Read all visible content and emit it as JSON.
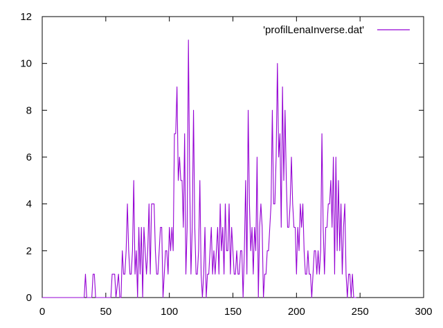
{
  "chart_data": {
    "type": "line",
    "title": "",
    "xlabel": "",
    "ylabel": "",
    "xlim": [
      0,
      300
    ],
    "ylim": [
      0,
      12
    ],
    "x_ticks": [
      0,
      50,
      100,
      150,
      200,
      250,
      300
    ],
    "y_ticks": [
      0,
      2,
      4,
      6,
      8,
      10,
      12
    ],
    "grid": false,
    "legend_position": "top-right",
    "series": [
      {
        "name": "'profilLenaInverse.dat'",
        "color": "#9400d3",
        "points": [
          [
            0,
            0
          ],
          [
            33,
            0
          ],
          [
            34,
            1
          ],
          [
            35,
            0
          ],
          [
            39,
            0
          ],
          [
            40,
            1
          ],
          [
            41,
            1
          ],
          [
            42,
            0
          ],
          [
            50,
            0
          ],
          [
            54,
            0
          ],
          [
            55,
            1
          ],
          [
            57,
            1
          ],
          [
            58,
            0
          ],
          [
            60,
            1
          ],
          [
            61,
            0
          ],
          [
            62,
            0
          ],
          [
            63,
            2
          ],
          [
            64,
            1
          ],
          [
            65,
            1
          ],
          [
            66,
            2
          ],
          [
            67,
            4
          ],
          [
            68,
            2
          ],
          [
            69,
            1
          ],
          [
            70,
            1
          ],
          [
            71,
            2
          ],
          [
            72,
            5
          ],
          [
            73,
            1
          ],
          [
            74,
            2
          ],
          [
            75,
            0
          ],
          [
            76,
            3
          ],
          [
            77,
            1
          ],
          [
            78,
            3
          ],
          [
            79,
            0
          ],
          [
            80,
            3
          ],
          [
            81,
            2
          ],
          [
            82,
            1
          ],
          [
            83,
            2
          ],
          [
            84,
            4
          ],
          [
            85,
            1
          ],
          [
            86,
            4
          ],
          [
            87,
            4
          ],
          [
            88,
            4
          ],
          [
            89,
            2
          ],
          [
            90,
            1
          ],
          [
            91,
            1
          ],
          [
            92,
            2
          ],
          [
            93,
            3
          ],
          [
            94,
            3
          ],
          [
            95,
            0
          ],
          [
            96,
            1
          ],
          [
            97,
            2
          ],
          [
            98,
            2
          ],
          [
            99,
            1
          ],
          [
            100,
            3
          ],
          [
            101,
            2
          ],
          [
            102,
            3
          ],
          [
            103,
            2
          ],
          [
            104,
            7
          ],
          [
            105,
            7
          ],
          [
            106,
            9
          ],
          [
            107,
            5
          ],
          [
            108,
            6
          ],
          [
            109,
            5
          ],
          [
            110,
            5
          ],
          [
            111,
            3
          ],
          [
            112,
            7
          ],
          [
            113,
            1
          ],
          [
            114,
            3
          ],
          [
            115,
            11
          ],
          [
            116,
            5
          ],
          [
            117,
            1
          ],
          [
            118,
            3
          ],
          [
            119,
            8
          ],
          [
            120,
            3
          ],
          [
            121,
            1
          ],
          [
            122,
            1
          ],
          [
            123,
            2
          ],
          [
            124,
            5
          ],
          [
            125,
            1
          ],
          [
            126,
            0
          ],
          [
            127,
            1
          ],
          [
            128,
            3
          ],
          [
            129,
            0
          ],
          [
            130,
            1
          ],
          [
            131,
            1
          ],
          [
            132,
            2
          ],
          [
            133,
            3
          ],
          [
            134,
            1
          ],
          [
            135,
            2
          ],
          [
            136,
            1
          ],
          [
            137,
            2
          ],
          [
            138,
            3
          ],
          [
            139,
            1
          ],
          [
            140,
            4
          ],
          [
            141,
            2
          ],
          [
            142,
            3
          ],
          [
            143,
            1
          ],
          [
            144,
            4
          ],
          [
            145,
            2
          ],
          [
            146,
            2
          ],
          [
            147,
            4
          ],
          [
            148,
            1
          ],
          [
            149,
            3
          ],
          [
            150,
            2
          ],
          [
            151,
            1
          ],
          [
            152,
            1
          ],
          [
            153,
            2
          ],
          [
            154,
            1
          ],
          [
            155,
            1
          ],
          [
            156,
            2
          ],
          [
            157,
            2
          ],
          [
            158,
            0
          ],
          [
            159,
            2
          ],
          [
            160,
            5
          ],
          [
            161,
            1
          ],
          [
            162,
            8
          ],
          [
            163,
            4
          ],
          [
            164,
            2
          ],
          [
            165,
            3
          ],
          [
            166,
            1
          ],
          [
            167,
            3
          ],
          [
            168,
            2
          ],
          [
            169,
            6
          ],
          [
            170,
            0
          ],
          [
            171,
            3
          ],
          [
            172,
            4
          ],
          [
            173,
            3
          ],
          [
            174,
            0
          ],
          [
            175,
            1
          ],
          [
            176,
            1
          ],
          [
            177,
            2
          ],
          [
            178,
            2
          ],
          [
            179,
            3
          ],
          [
            180,
            4
          ],
          [
            181,
            8
          ],
          [
            182,
            4
          ],
          [
            183,
            4
          ],
          [
            184,
            6
          ],
          [
            185,
            10
          ],
          [
            186,
            6
          ],
          [
            187,
            7
          ],
          [
            188,
            3
          ],
          [
            189,
            9
          ],
          [
            190,
            5
          ],
          [
            191,
            8
          ],
          [
            192,
            5
          ],
          [
            193,
            3
          ],
          [
            194,
            3
          ],
          [
            195,
            4
          ],
          [
            196,
            6
          ],
          [
            197,
            4
          ],
          [
            198,
            3
          ],
          [
            199,
            3
          ],
          [
            200,
            1
          ],
          [
            201,
            3
          ],
          [
            202,
            2
          ],
          [
            203,
            4
          ],
          [
            204,
            3
          ],
          [
            205,
            4
          ],
          [
            206,
            2
          ],
          [
            207,
            1
          ],
          [
            208,
            1
          ],
          [
            209,
            2
          ],
          [
            210,
            1
          ],
          [
            211,
            1
          ],
          [
            212,
            0
          ],
          [
            213,
            1
          ],
          [
            214,
            2
          ],
          [
            215,
            2
          ],
          [
            216,
            1
          ],
          [
            217,
            2
          ],
          [
            218,
            1
          ],
          [
            219,
            2
          ],
          [
            220,
            7
          ],
          [
            221,
            3
          ],
          [
            222,
            1
          ],
          [
            223,
            3
          ],
          [
            224,
            3
          ],
          [
            225,
            4
          ],
          [
            226,
            4
          ],
          [
            227,
            5
          ],
          [
            228,
            3
          ],
          [
            229,
            6
          ],
          [
            230,
            1
          ],
          [
            231,
            6
          ],
          [
            232,
            2
          ],
          [
            233,
            5
          ],
          [
            234,
            2
          ],
          [
            235,
            4
          ],
          [
            236,
            1
          ],
          [
            237,
            3
          ],
          [
            238,
            4
          ],
          [
            239,
            1
          ],
          [
            240,
            0
          ],
          [
            241,
            1
          ],
          [
            242,
            1
          ],
          [
            243,
            0
          ],
          [
            244,
            1
          ],
          [
            245,
            0
          ],
          [
            246,
            0
          ],
          [
            247,
            0
          ]
        ]
      }
    ]
  }
}
